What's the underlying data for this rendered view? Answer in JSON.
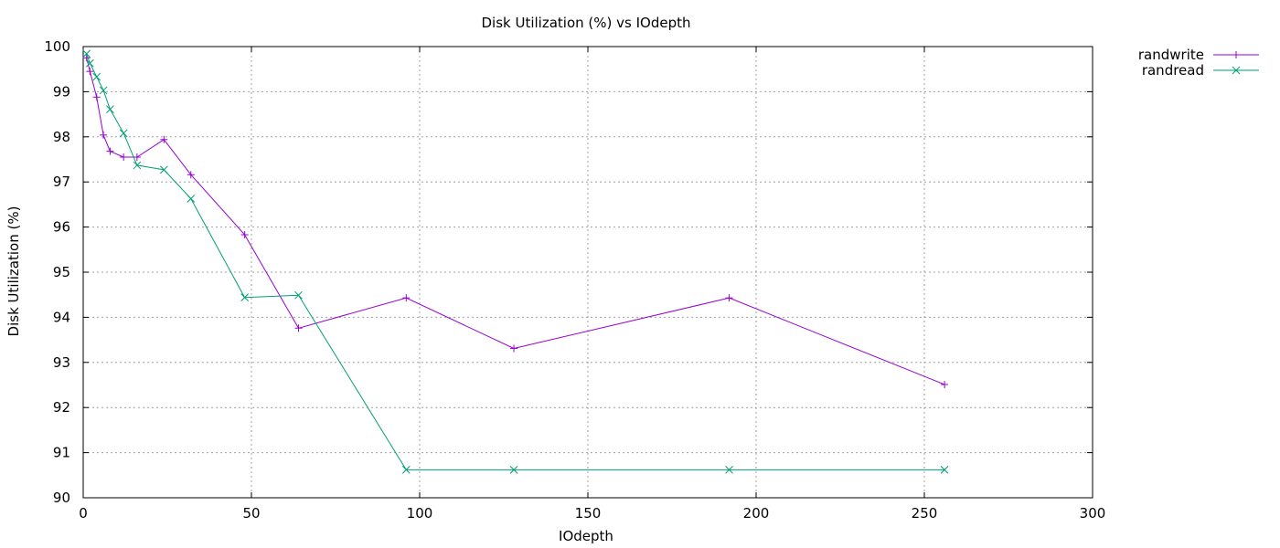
{
  "chart_data": {
    "type": "line",
    "title": "Disk Utilization (%) vs IOdepth",
    "xlabel": "IOdepth",
    "ylabel": "Disk Utilization (%)",
    "xlim": [
      0,
      300
    ],
    "ylim": [
      90,
      100
    ],
    "xticks": [
      0,
      50,
      100,
      150,
      200,
      250,
      300
    ],
    "yticks": [
      90,
      91,
      92,
      93,
      94,
      95,
      96,
      97,
      98,
      99,
      100
    ],
    "grid": true,
    "legend_position": "outside-top-right",
    "series": [
      {
        "name": "randwrite",
        "color": "#9400d3",
        "marker": "plus",
        "x": [
          1,
          2,
          4,
          6,
          8,
          12,
          16,
          24,
          32,
          48,
          64,
          96,
          128,
          192,
          256
        ],
        "y": [
          99.75,
          99.45,
          98.88,
          98.04,
          97.68,
          97.55,
          97.55,
          97.94,
          97.16,
          95.83,
          93.76,
          94.43,
          93.31,
          94.43,
          92.51
        ]
      },
      {
        "name": "randread",
        "color": "#009e73",
        "marker": "cross",
        "x": [
          1,
          2,
          4,
          6,
          8,
          12,
          16,
          24,
          32,
          48,
          64,
          96,
          128,
          192,
          256
        ],
        "y": [
          99.84,
          99.63,
          99.33,
          99.03,
          98.61,
          98.08,
          97.37,
          97.27,
          96.63,
          94.44,
          94.49,
          90.62,
          90.62,
          90.62,
          90.62
        ]
      }
    ]
  }
}
